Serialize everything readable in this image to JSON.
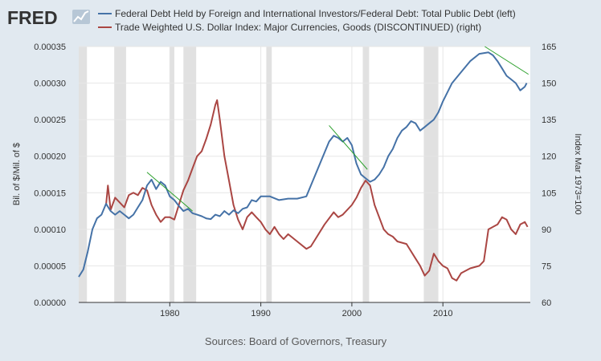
{
  "logo": {
    "text": "FRED",
    "icon": "line-chart-icon"
  },
  "colors": {
    "background": "#e1e9f0",
    "plot_background": "#ffffff",
    "series_left": "#4572a7",
    "series_right": "#aa4643",
    "trendline": "#2ca02c",
    "recession": "#e1e1e1"
  },
  "chart_data": {
    "type": "line",
    "source": "Sources: Board of Governors, Treasury",
    "xlim": [
      1970,
      2019.6
    ],
    "x_ticks": [
      1980,
      1990,
      2000,
      2010
    ],
    "y_left": {
      "label": "Bil. of $/Mil. of $",
      "range": [
        0,
        0.00035
      ],
      "ticks": [
        "0.00000",
        "0.00005",
        "0.00010",
        "0.00015",
        "0.00020",
        "0.00025",
        "0.00030",
        "0.00035"
      ]
    },
    "y_right": {
      "label": "Index Mar 1973=100",
      "range": [
        60,
        165
      ],
      "ticks": [
        60,
        75,
        90,
        105,
        120,
        135,
        150,
        165
      ]
    },
    "recessions": [
      [
        1970.0,
        1970.9
      ],
      [
        1973.9,
        1975.2
      ],
      [
        1980.0,
        1980.5
      ],
      [
        1981.5,
        1982.9
      ],
      [
        1990.6,
        1991.2
      ],
      [
        2001.2,
        2001.9
      ],
      [
        2007.9,
        2009.5
      ]
    ],
    "series": [
      {
        "name": "Federal Debt Held by Foreign and International Investors/Federal Debt: Total Public Debt (left)",
        "axis": "left",
        "x": [
          1970.0,
          1970.5,
          1971.0,
          1971.5,
          1972.0,
          1972.5,
          1973.0,
          1973.5,
          1974.0,
          1974.5,
          1975.0,
          1975.5,
          1976.0,
          1976.5,
          1977.0,
          1977.5,
          1978.0,
          1978.5,
          1979.0,
          1979.5,
          1980.0,
          1980.5,
          1981.0,
          1981.5,
          1982.0,
          1982.5,
          1983.0,
          1983.5,
          1984.0,
          1984.5,
          1985.0,
          1985.5,
          1986.0,
          1986.5,
          1987.0,
          1987.5,
          1988.0,
          1988.5,
          1989.0,
          1989.5,
          1990.0,
          1991.0,
          1992.0,
          1993.0,
          1994.0,
          1995.0,
          1995.5,
          1996.0,
          1996.5,
          1997.0,
          1997.5,
          1998.0,
          1998.5,
          1999.0,
          1999.5,
          2000.0,
          2000.5,
          2001.0,
          2001.5,
          2002.0,
          2002.5,
          2003.0,
          2003.5,
          2004.0,
          2004.5,
          2005.0,
          2005.5,
          2006.0,
          2006.5,
          2007.0,
          2007.5,
          2008.0,
          2008.5,
          2009.0,
          2009.5,
          2010.0,
          2011.0,
          2012.0,
          2013.0,
          2014.0,
          2015.0,
          2015.5,
          2016.0,
          2016.5,
          2017.0,
          2017.5,
          2018.0,
          2018.5,
          2019.0,
          2019.2
        ],
        "values": [
          3.5e-05,
          4.5e-05,
          7e-05,
          0.0001,
          0.000115,
          0.00012,
          0.000135,
          0.000125,
          0.00012,
          0.000125,
          0.00012,
          0.000115,
          0.00012,
          0.00013,
          0.00014,
          0.00016,
          0.000168,
          0.000155,
          0.000165,
          0.00016,
          0.000145,
          0.00014,
          0.000132,
          0.000125,
          0.000128,
          0.000122,
          0.00012,
          0.000118,
          0.000115,
          0.000114,
          0.00012,
          0.000118,
          0.000125,
          0.00012,
          0.000126,
          0.000122,
          0.000128,
          0.00013,
          0.00014,
          0.000138,
          0.000145,
          0.000145,
          0.00014,
          0.000142,
          0.000142,
          0.000145,
          0.00016,
          0.000175,
          0.00019,
          0.000205,
          0.00022,
          0.000228,
          0.000225,
          0.00022,
          0.000225,
          0.000215,
          0.00019,
          0.000175,
          0.00017,
          0.000165,
          0.000168,
          0.000175,
          0.000185,
          0.0002,
          0.00021,
          0.000225,
          0.000235,
          0.00024,
          0.000248,
          0.000245,
          0.000235,
          0.00024,
          0.000245,
          0.00025,
          0.00026,
          0.000275,
          0.0003,
          0.000315,
          0.00033,
          0.00034,
          0.000342,
          0.000338,
          0.00033,
          0.00032,
          0.00031,
          0.000305,
          0.0003,
          0.00029,
          0.000295,
          0.0003
        ]
      },
      {
        "name": "Trade Weighted U.S. Dollar Index: Major Currencies, Goods (DISCONTINUED) (right)",
        "axis": "right",
        "x": [
          1973.0,
          1973.2,
          1973.5,
          1974.0,
          1974.5,
          1975.0,
          1975.5,
          1976.0,
          1976.5,
          1977.0,
          1977.5,
          1978.0,
          1978.5,
          1979.0,
          1979.5,
          1980.0,
          1980.5,
          1981.0,
          1981.5,
          1982.0,
          1982.5,
          1983.0,
          1983.5,
          1984.0,
          1984.5,
          1985.0,
          1985.2,
          1985.5,
          1986.0,
          1986.5,
          1987.0,
          1987.5,
          1988.0,
          1988.5,
          1989.0,
          1989.5,
          1990.0,
          1990.5,
          1991.0,
          1991.5,
          1992.0,
          1992.5,
          1993.0,
          1994.0,
          1995.0,
          1995.5,
          1996.0,
          1997.0,
          1998.0,
          1998.5,
          1999.0,
          2000.0,
          2000.5,
          2001.0,
          2001.5,
          2002.0,
          2002.5,
          2003.0,
          2003.5,
          2004.0,
          2004.5,
          2005.0,
          2006.0,
          2007.0,
          2007.5,
          2008.0,
          2008.5,
          2009.0,
          2009.5,
          2010.0,
          2010.5,
          2011.0,
          2011.5,
          2012.0,
          2013.0,
          2014.0,
          2014.5,
          2015.0,
          2016.0,
          2016.5,
          2017.0,
          2017.5,
          2018.0,
          2018.5,
          2019.0,
          2019.3
        ],
        "values": [
          100.0,
          108.0,
          98.0,
          103.0,
          101.0,
          99.0,
          104.0,
          105.0,
          104.0,
          107.0,
          106.0,
          100.0,
          96.0,
          93.0,
          95.0,
          95.0,
          94.0,
          100.0,
          106.0,
          110.0,
          115.0,
          120.0,
          122.0,
          127.0,
          133.0,
          141.0,
          143.0,
          135.0,
          120.0,
          110.0,
          100.0,
          94.0,
          90.0,
          95.0,
          97.0,
          95.0,
          93.0,
          90.0,
          88.0,
          91.0,
          88.0,
          86.0,
          88.0,
          85.0,
          82.0,
          83.0,
          86.0,
          92.0,
          97.0,
          95.0,
          96.0,
          100.0,
          103.0,
          107.0,
          110.0,
          108.0,
          100.0,
          95.0,
          90.0,
          88.0,
          87.0,
          85.0,
          84.0,
          78.0,
          75.0,
          71.0,
          73.0,
          80.0,
          77.0,
          75.0,
          74.0,
          70.0,
          69.0,
          72.0,
          74.0,
          75.0,
          77.0,
          90.0,
          92.0,
          95.0,
          94.0,
          90.0,
          88.0,
          92.0,
          93.0,
          91.0
        ]
      }
    ],
    "trendlines": [
      {
        "axis": "left",
        "x": [
          1977.5,
          1982.5
        ],
        "values": [
          0.000178,
          0.000125
        ]
      },
      {
        "axis": "left",
        "x": [
          1997.5,
          2001.7
        ],
        "values": [
          0.000242,
          0.000182
        ]
      },
      {
        "axis": "left",
        "x": [
          2014.6,
          2019.4
        ],
        "values": [
          0.00035,
          0.000312
        ]
      }
    ]
  }
}
